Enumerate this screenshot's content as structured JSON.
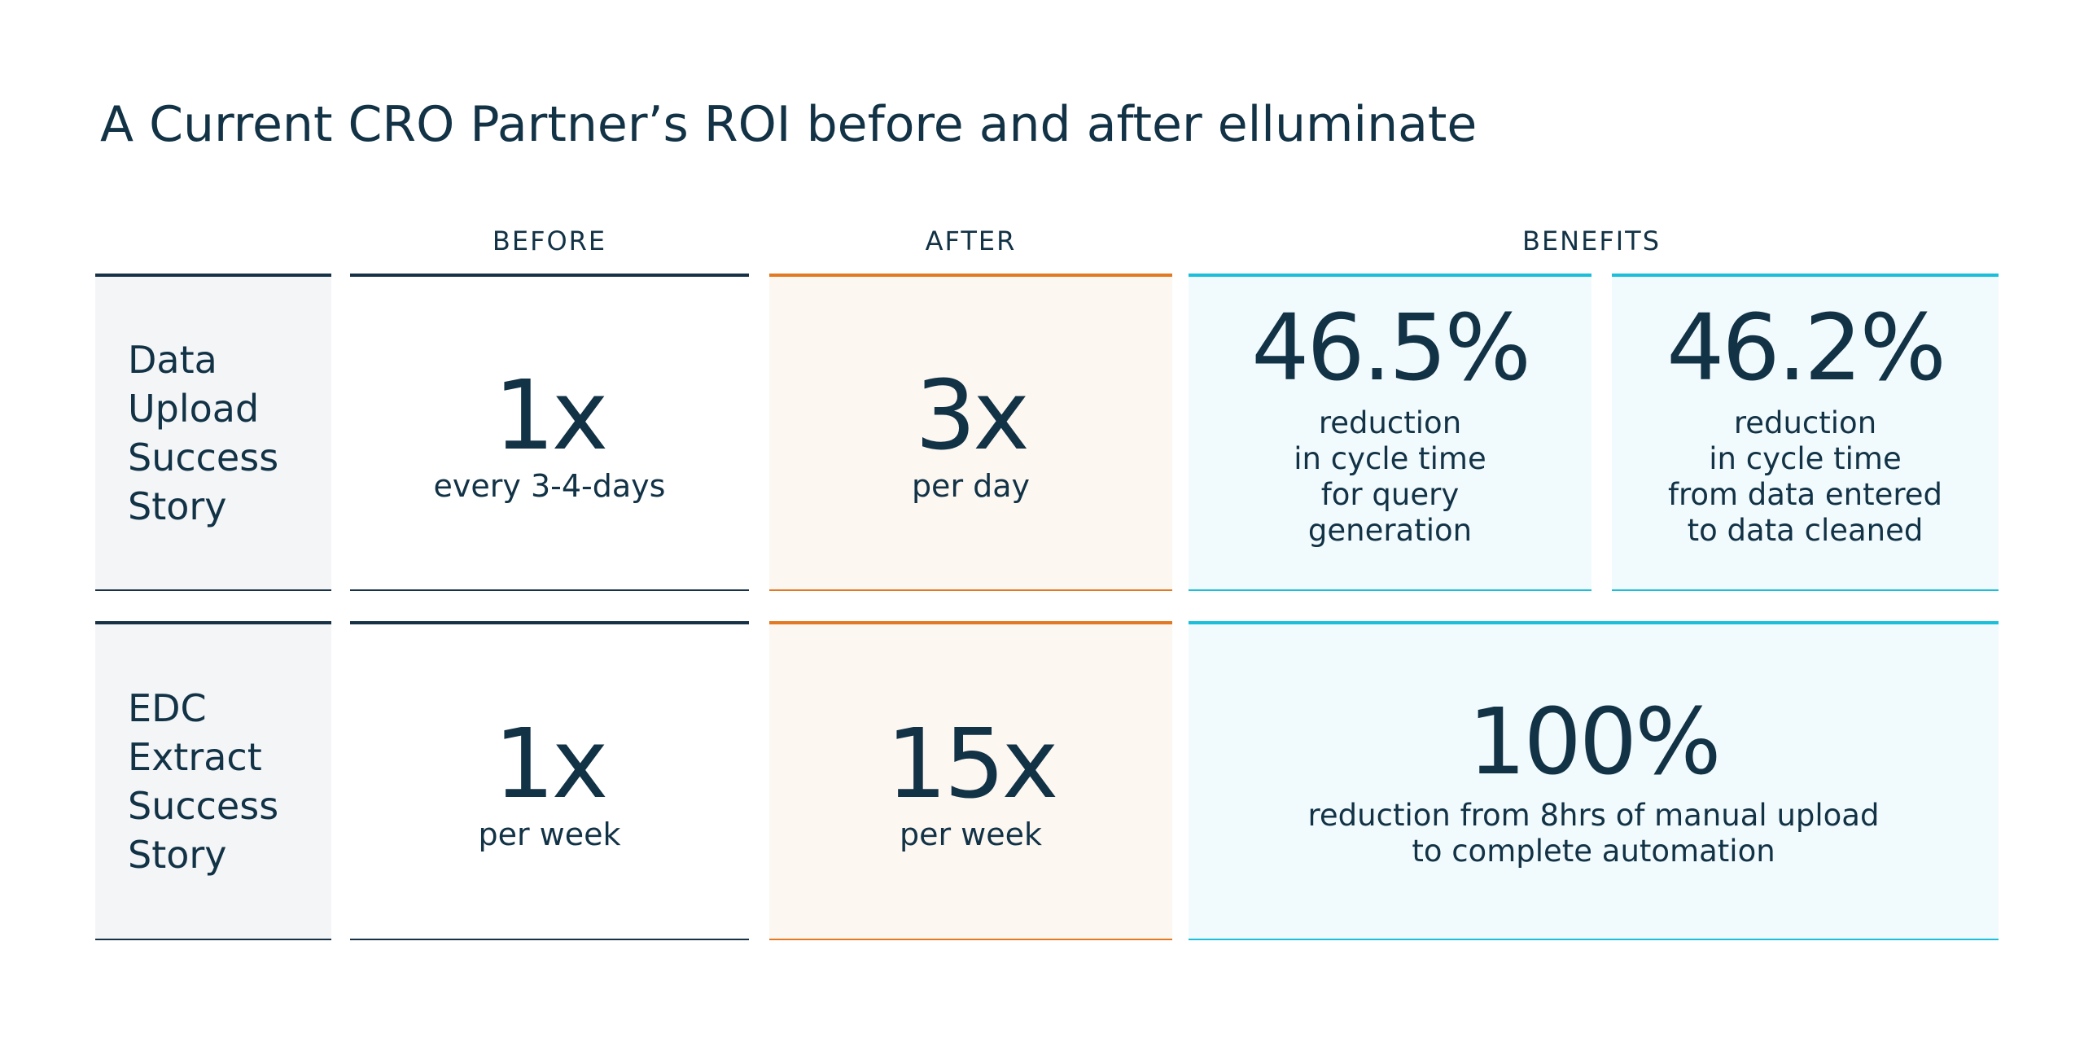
{
  "title": "A Current CRO Partner’s ROI before and after elluminate",
  "columns": {
    "before": "BEFORE",
    "after": "AFTER",
    "benefits": "BENEFITS"
  },
  "rows": [
    {
      "label": "Data\nUpload\nSuccess\nStory",
      "before": {
        "value": "1x",
        "unit": "every 3-4-days"
      },
      "after": {
        "value": "3x",
        "unit": "per day"
      },
      "benefits": [
        {
          "value": "46.5%",
          "description": "reduction\nin cycle time\nfor query\ngeneration"
        },
        {
          "value": "46.2%",
          "description": "reduction\nin cycle time\nfrom data entered\nto data cleaned"
        }
      ]
    },
    {
      "label": "EDC\nExtract\nSuccess\nStory",
      "before": {
        "value": "1x",
        "unit": "per week"
      },
      "after": {
        "value": "15x",
        "unit": "per week"
      },
      "benefits": [
        {
          "value": "100%",
          "description": "reduction from 8hrs of manual upload\nto complete automation"
        }
      ]
    }
  ],
  "colors": {
    "navy": "#123246",
    "orange": "#e27a24",
    "cyan": "#1bbfd9",
    "label_bg": "#f3f5f7",
    "after_bg": "#fdf7f2",
    "benefit_bg": "#f1fafc"
  }
}
